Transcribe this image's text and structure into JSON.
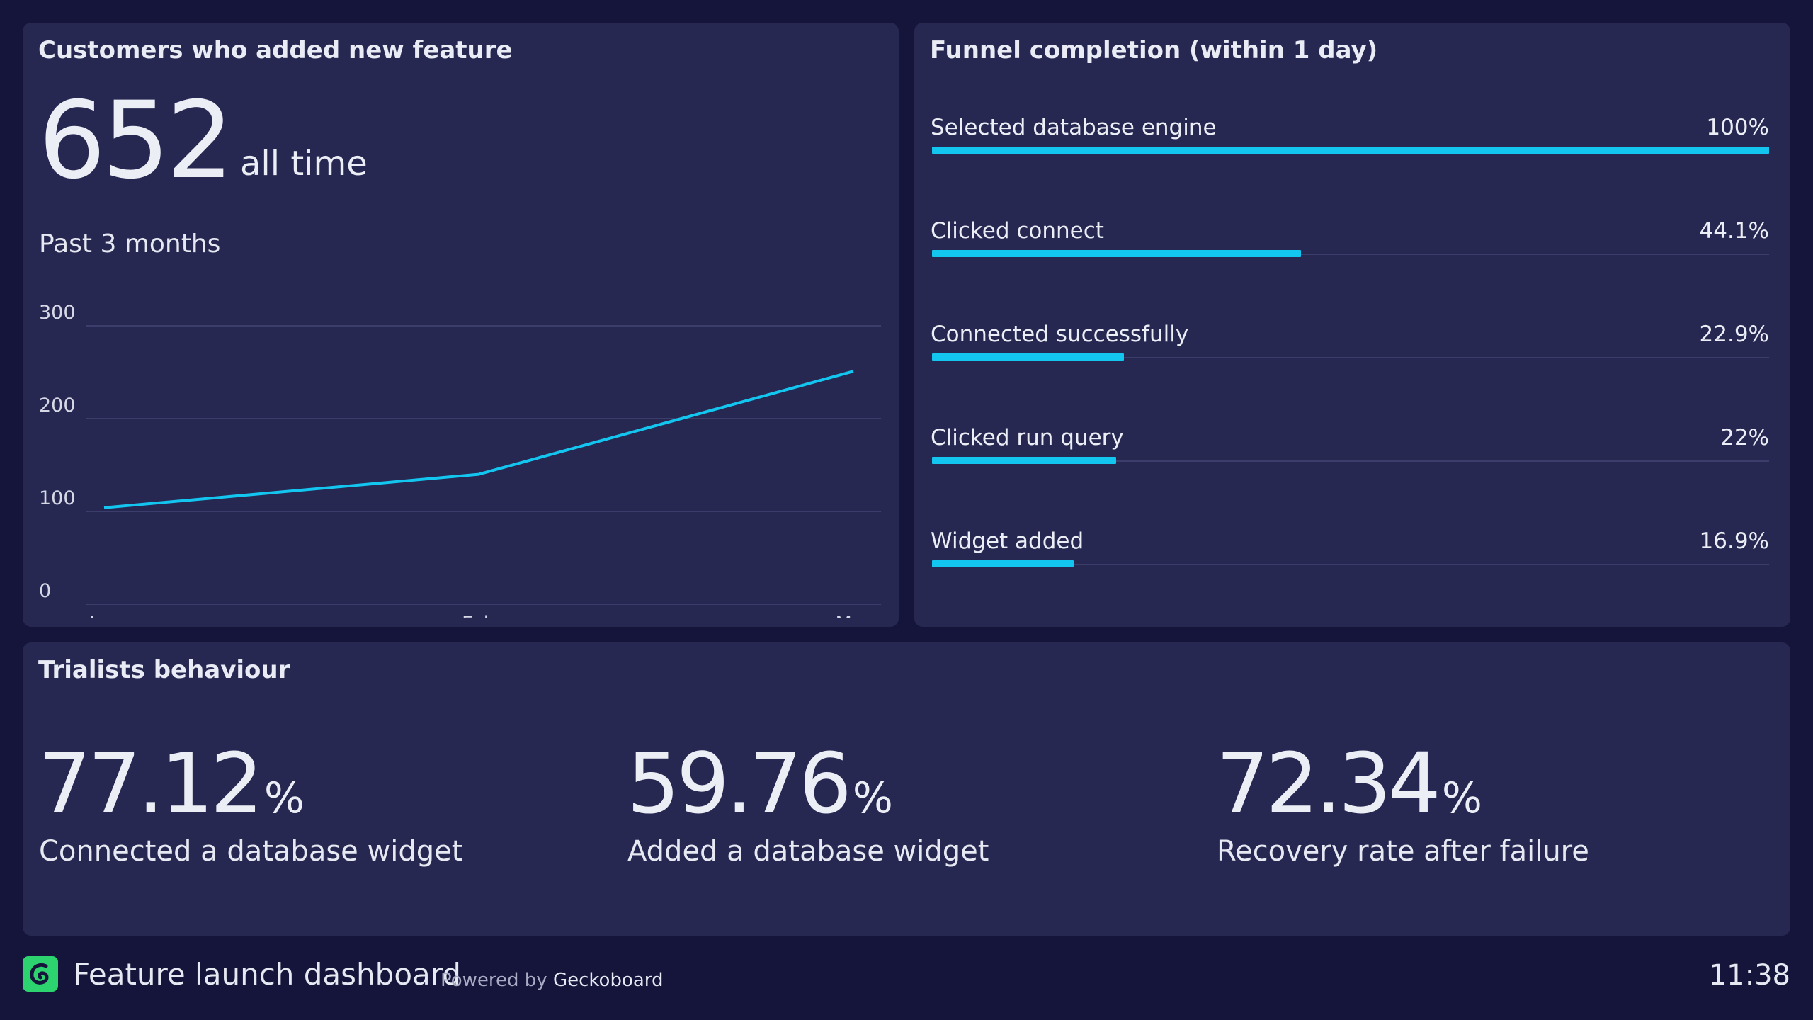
{
  "customers_panel": {
    "title": "Customers who added new feature",
    "total": "652",
    "total_suffix": "all time",
    "subtitle": "Past 3 months"
  },
  "chart_data": {
    "type": "line",
    "title": "",
    "xlabel": "",
    "ylabel": "",
    "categories": [
      "Jan",
      "Feb",
      "Mar"
    ],
    "series": [
      {
        "values": [
          104,
          140,
          251
        ]
      }
    ],
    "ylim": [
      0,
      300
    ],
    "yticks": [
      0,
      100,
      200,
      300
    ],
    "grid": true,
    "color": "#13c6f0"
  },
  "funnel_panel": {
    "title": "Funnel completion (within 1 day)",
    "steps": [
      {
        "label": "Selected database engine",
        "value_text": "100%",
        "percent": 100
      },
      {
        "label": "Clicked connect",
        "value_text": "44.1%",
        "percent": 44.1
      },
      {
        "label": "Connected successfully",
        "value_text": "22.9%",
        "percent": 22.9
      },
      {
        "label": "Clicked run query",
        "value_text": "22%",
        "percent": 22
      },
      {
        "label": "Widget added",
        "value_text": "16.9%",
        "percent": 16.9
      }
    ],
    "bar_color": "#13c6f0"
  },
  "trialists_panel": {
    "title": "Trialists behaviour",
    "stats": [
      {
        "value": "77.12",
        "unit": "%",
        "label": "Connected a database widget"
      },
      {
        "value": "59.76",
        "unit": "%",
        "label": "Added a database widget"
      },
      {
        "value": "72.34",
        "unit": "%",
        "label": "Recovery rate after failure"
      }
    ]
  },
  "footer": {
    "title": "Feature launch dashboard",
    "powered_by": "Powered by",
    "brand": "Geckoboard",
    "time": "11:38",
    "logo_icon": "geckoboard-logo-icon",
    "logo_color": "#2dd36f"
  }
}
